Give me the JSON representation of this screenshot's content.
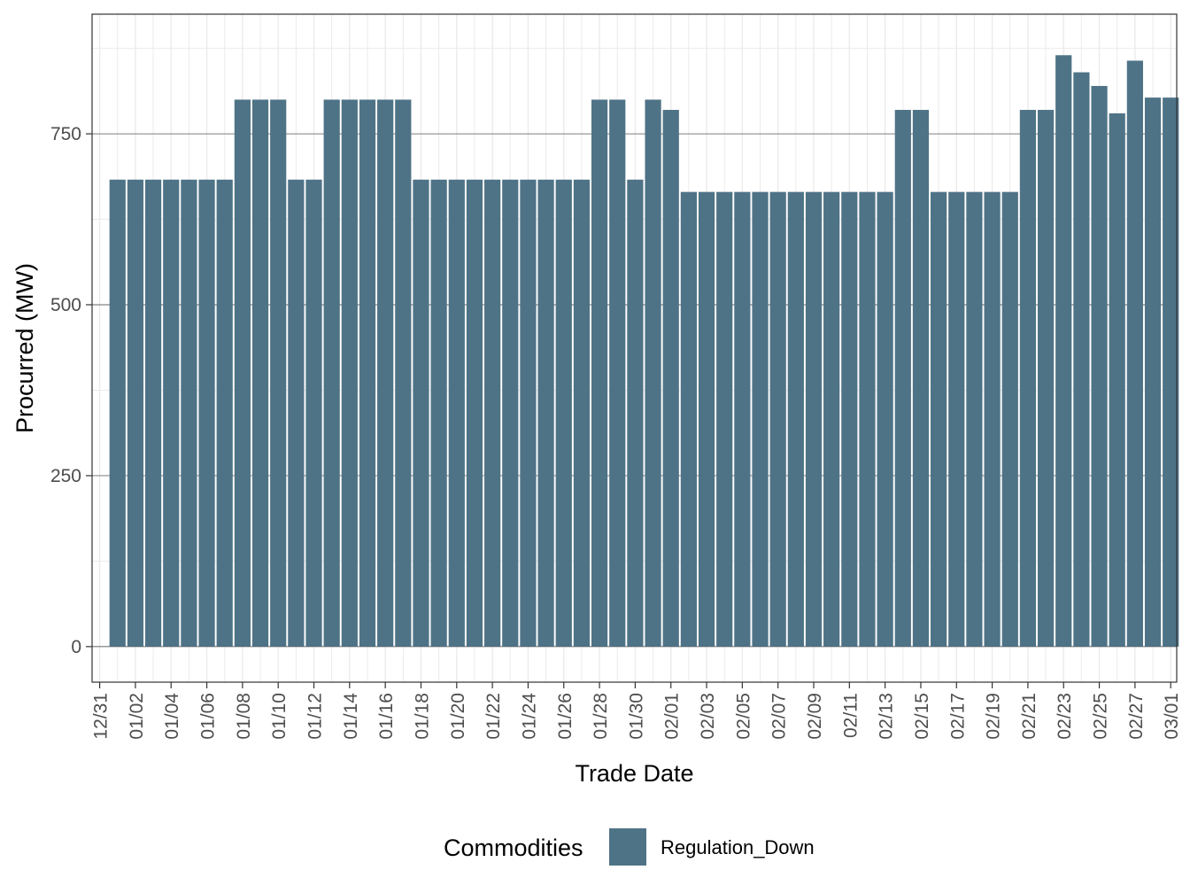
{
  "chart_data": {
    "type": "bar",
    "xlabel": "Trade Date",
    "ylabel": "Procurred (MW)",
    "ylim": [
      -52,
      925
    ],
    "y_ticks": [
      0,
      250,
      500,
      750
    ],
    "x_tick_labels": [
      "12/31",
      "01/02",
      "01/04",
      "01/06",
      "01/08",
      "01/10",
      "01/12",
      "01/14",
      "01/16",
      "01/18",
      "01/20",
      "01/22",
      "01/24",
      "01/26",
      "01/28",
      "01/30",
      "02/01",
      "02/03",
      "02/05",
      "02/07",
      "02/09",
      "02/11",
      "02/13",
      "02/15",
      "02/17",
      "02/19",
      "02/21",
      "02/23",
      "02/25",
      "02/27",
      "03/01"
    ],
    "grid": true,
    "legend": {
      "title": "Commodities",
      "position": "bottom"
    },
    "bar_color": "#4f7386",
    "categories": [
      "01/01",
      "01/02",
      "01/03",
      "01/04",
      "01/05",
      "01/06",
      "01/07",
      "01/08",
      "01/09",
      "01/10",
      "01/11",
      "01/12",
      "01/13",
      "01/14",
      "01/15",
      "01/16",
      "01/17",
      "01/18",
      "01/19",
      "01/20",
      "01/21",
      "01/22",
      "01/23",
      "01/24",
      "01/25",
      "01/26",
      "01/27",
      "01/28",
      "01/29",
      "01/30",
      "01/31",
      "02/01",
      "02/02",
      "02/03",
      "02/04",
      "02/05",
      "02/06",
      "02/07",
      "02/08",
      "02/09",
      "02/10",
      "02/11",
      "02/12",
      "02/13",
      "02/14",
      "02/15",
      "02/16",
      "02/17",
      "02/18",
      "02/19",
      "02/20",
      "02/21",
      "02/22",
      "02/23",
      "02/24",
      "02/25",
      "02/26",
      "02/27",
      "02/28",
      "02/29"
    ],
    "series": [
      {
        "name": "Regulation_Down",
        "values": [
          683,
          683,
          683,
          683,
          683,
          683,
          683,
          800,
          800,
          800,
          683,
          683,
          800,
          800,
          800,
          800,
          800,
          683,
          683,
          683,
          683,
          683,
          683,
          683,
          683,
          683,
          683,
          800,
          800,
          683,
          800,
          785,
          665,
          665,
          665,
          665,
          665,
          665,
          665,
          665,
          665,
          665,
          665,
          665,
          785,
          785,
          665,
          665,
          665,
          665,
          665,
          785,
          785,
          865,
          840,
          820,
          780,
          857,
          803,
          803
        ]
      }
    ]
  }
}
